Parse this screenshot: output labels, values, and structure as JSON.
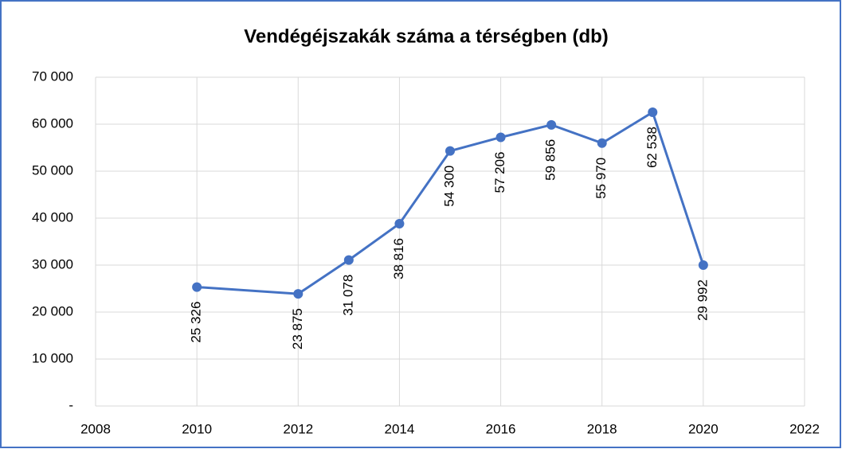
{
  "chart_data": {
    "type": "line",
    "title": "Vendégéjszakák száma a térségben (db)",
    "x": [
      2010,
      2012,
      2013,
      2014,
      2015,
      2016,
      2017,
      2018,
      2019,
      2020
    ],
    "series": [
      {
        "name": "Vendégéjszakák",
        "color": "#4472c4",
        "values": [
          25326,
          23875,
          31078,
          38816,
          54300,
          57206,
          59856,
          55970,
          62538,
          29992
        ],
        "value_labels": [
          "25 326",
          "23 875",
          "31 078",
          "38 816",
          "54 300",
          "57 206",
          "59 856",
          "55 970",
          "62 538",
          "29 992"
        ]
      }
    ],
    "xlim": [
      2008,
      2022
    ],
    "xticks": [
      2008,
      2010,
      2012,
      2014,
      2016,
      2018,
      2020,
      2022
    ],
    "ylim": [
      0,
      70000
    ],
    "yticks": [
      {
        "value": 0,
        "label": "-"
      },
      {
        "value": 10000,
        "label": "10 000"
      },
      {
        "value": 20000,
        "label": "20 000"
      },
      {
        "value": 30000,
        "label": "30 000"
      },
      {
        "value": 40000,
        "label": "40 000"
      },
      {
        "value": 50000,
        "label": "50 000"
      },
      {
        "value": 60000,
        "label": "60 000"
      },
      {
        "value": 70000,
        "label": "70 000"
      }
    ],
    "grid": true
  }
}
